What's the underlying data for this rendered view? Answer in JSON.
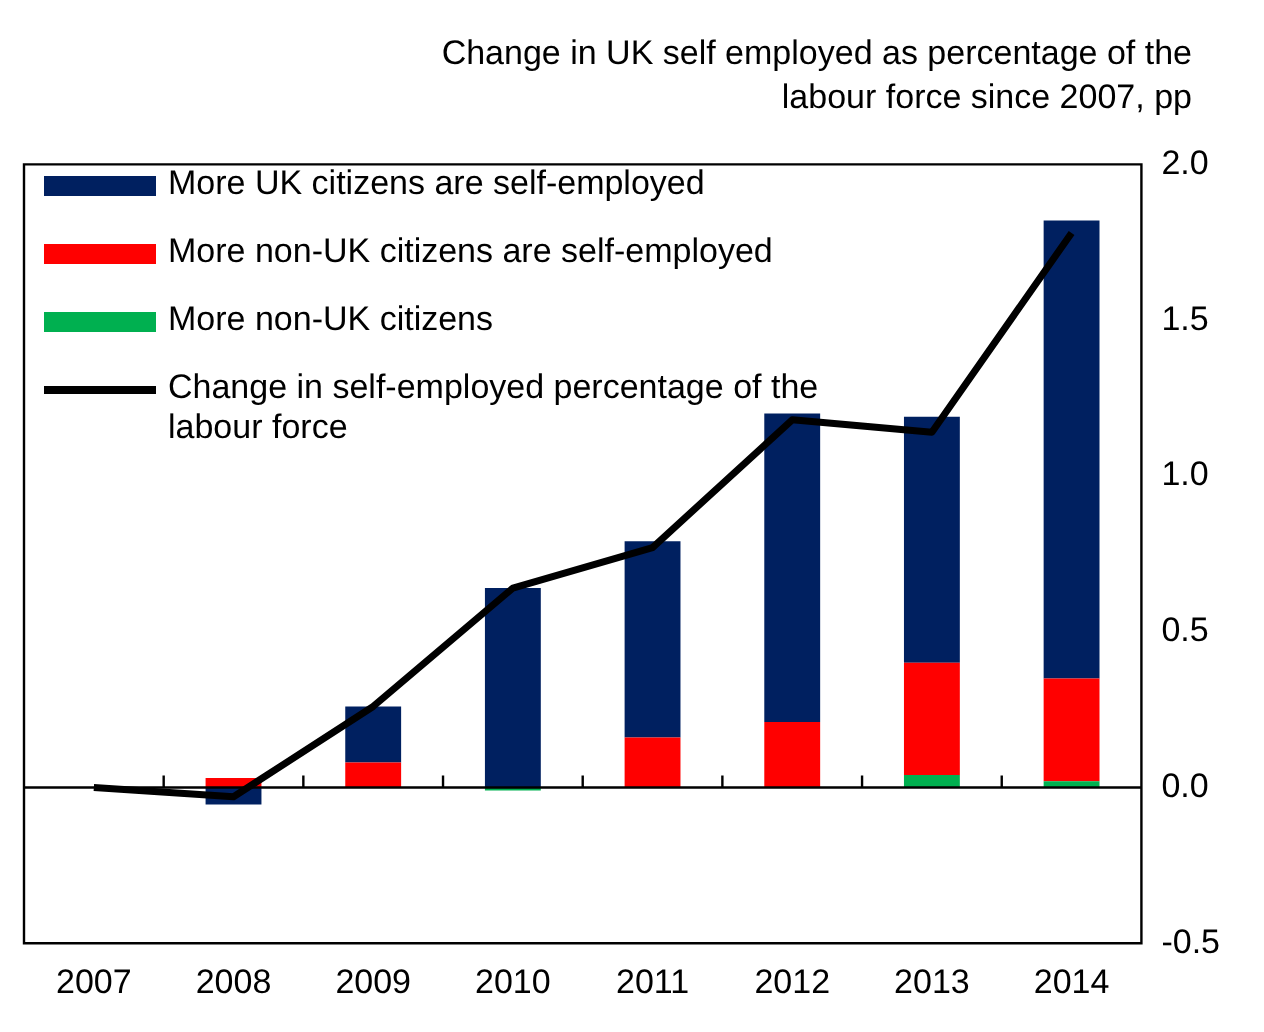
{
  "chart_data": {
    "type": "bar",
    "title": "Change in UK self employed as percentage of the labour force since 2007, pp",
    "categories": [
      "2007",
      "2008",
      "2009",
      "2010",
      "2011",
      "2012",
      "2013",
      "2014"
    ],
    "stacked": true,
    "series": [
      {
        "name": "More UK citizens are self-employed",
        "color": "#002060",
        "values": [
          0,
          -0.055,
          0.18,
          0.64,
          0.63,
          0.99,
          0.79,
          1.47
        ]
      },
      {
        "name": "More non-UK citizens are self-employed",
        "color": "#ff0000",
        "values": [
          0,
          0.03,
          0.08,
          0,
          0.16,
          0.21,
          0.36,
          0.33
        ]
      },
      {
        "name": "More non-UK citizens",
        "color": "#00b050",
        "values": [
          0,
          0,
          0,
          -0.01,
          0,
          0,
          0.04,
          0.02
        ]
      },
      {
        "name": "Change in self-employed percentage of the labour force",
        "type": "line",
        "color": "#000000",
        "marker": "none",
        "values": [
          0,
          -0.03,
          0.26,
          0.64,
          0.77,
          1.18,
          1.14,
          1.78
        ]
      }
    ],
    "ylim": [
      -0.5,
      2.0
    ],
    "yticks": [
      -0.5,
      {
        "value": 0,
        "label": "0.0"
      },
      0.5,
      {
        "value": 1,
        "label": "1.0"
      },
      1.5,
      {
        "value": 2,
        "label": "2.0"
      }
    ],
    "legend": "top left"
  }
}
